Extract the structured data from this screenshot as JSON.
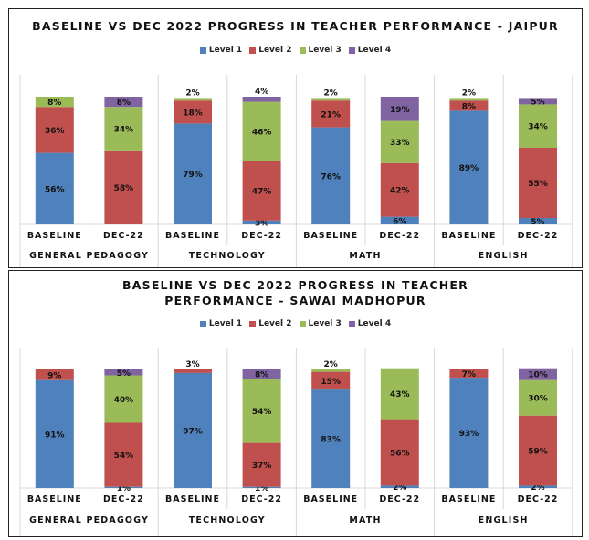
{
  "colors": {
    "Level 1": "#4f81bd",
    "Level 2": "#c0504d",
    "Level 3": "#9bbb59",
    "Level 4": "#8064a2"
  },
  "chart_data": [
    {
      "type": "bar",
      "stacked": true,
      "title": "BASELINE VS DEC 2022 PROGRESS IN TEACHER PERFORMANCE - JAIPUR",
      "legend": [
        "Level 1",
        "Level 2",
        "Level 3",
        "Level 4"
      ],
      "legend_position": "top",
      "groups": [
        "GENERAL PEDAGOGY",
        "TECHNOLOGY",
        "MATH",
        "ENGLISH"
      ],
      "categories": [
        "BASELINE",
        "DEC-22",
        "BASELINE",
        "DEC-22",
        "BASELINE",
        "DEC-22",
        "BASELINE",
        "DEC-22"
      ],
      "ylim": [
        0,
        100
      ],
      "series": [
        {
          "name": "Level 1",
          "values": [
            56,
            0,
            79,
            3,
            76,
            6,
            89,
            5
          ]
        },
        {
          "name": "Level 2",
          "values": [
            36,
            58,
            18,
            47,
            21,
            42,
            8,
            55
          ]
        },
        {
          "name": "Level 3",
          "values": [
            8,
            34,
            2,
            46,
            2,
            33,
            2,
            34
          ]
        },
        {
          "name": "Level 4",
          "values": [
            0,
            8,
            0,
            4,
            0,
            19,
            0,
            5
          ]
        }
      ]
    },
    {
      "type": "bar",
      "stacked": true,
      "title": "BASELINE VS DEC 2022 PROGRESS IN TEACHER PERFORMANCE - SAWAI MADHOPUR",
      "legend": [
        "Level 1",
        "Level 2",
        "Level 3",
        "Level 4"
      ],
      "legend_position": "top",
      "groups": [
        "GENERAL PEDAGOGY",
        "TECHNOLOGY",
        "MATH",
        "ENGLISH"
      ],
      "categories": [
        "BASELINE",
        "DEC-22",
        "BASELINE",
        "DEC-22",
        "BASELINE",
        "DEC-22",
        "BASELINE",
        "DEC-22"
      ],
      "ylim": [
        0,
        100
      ],
      "series": [
        {
          "name": "Level 1",
          "values": [
            91,
            1,
            97,
            1,
            83,
            2,
            93,
            2
          ]
        },
        {
          "name": "Level 2",
          "values": [
            9,
            54,
            3,
            37,
            15,
            56,
            7,
            59
          ]
        },
        {
          "name": "Level 3",
          "values": [
            0,
            40,
            0,
            54,
            2,
            43,
            0,
            30
          ]
        },
        {
          "name": "Level 4",
          "values": [
            0,
            5,
            0,
            8,
            0,
            0,
            0,
            10
          ]
        }
      ]
    }
  ]
}
